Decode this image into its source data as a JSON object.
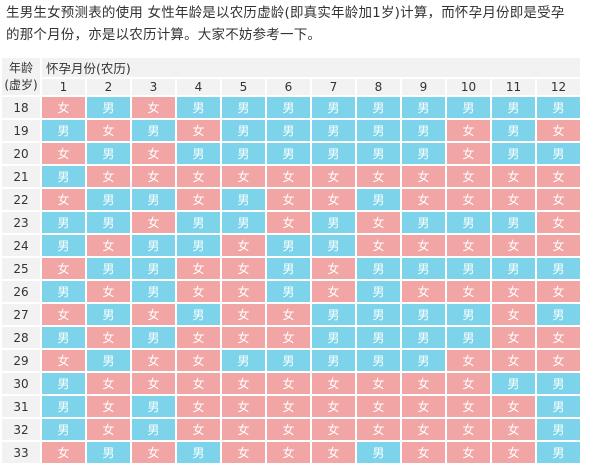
{
  "intro": {
    "line1": "生男生女预测表的使用 女性年龄是以农历虚龄(即真实年龄加1岁)计算，而怀孕月份即是受孕",
    "line2": "的那个月份，亦是以农历计算。大家不妨参考一下。"
  },
  "table": {
    "corner_line1": "年龄",
    "corner_line2": "(虚岁)",
    "month_title": "怀孕月份(农历)",
    "months": [
      "1",
      "2",
      "3",
      "4",
      "5",
      "6",
      "7",
      "8",
      "9",
      "10",
      "11",
      "12"
    ],
    "boy_label": "男",
    "girl_label": "女",
    "colors": {
      "boy": "#7dd4ea",
      "girl": "#f2a5a5",
      "header": "#f2f2f2"
    },
    "rows": [
      {
        "age": "18",
        "cells": [
          "女",
          "男",
          "女",
          "男",
          "男",
          "男",
          "男",
          "男",
          "男",
          "男",
          "男",
          "男"
        ]
      },
      {
        "age": "19",
        "cells": [
          "男",
          "女",
          "男",
          "女",
          "男",
          "男",
          "男",
          "男",
          "男",
          "女",
          "男",
          "女"
        ]
      },
      {
        "age": "20",
        "cells": [
          "女",
          "男",
          "女",
          "男",
          "男",
          "男",
          "男",
          "男",
          "男",
          "女",
          "男",
          "男"
        ]
      },
      {
        "age": "21",
        "cells": [
          "男",
          "女",
          "女",
          "女",
          "女",
          "女",
          "女",
          "女",
          "女",
          "女",
          "女",
          "女"
        ]
      },
      {
        "age": "22",
        "cells": [
          "女",
          "男",
          "男",
          "女",
          "男",
          "女",
          "女",
          "男",
          "女",
          "女",
          "女",
          "女"
        ]
      },
      {
        "age": "23",
        "cells": [
          "男",
          "男",
          "女",
          "男",
          "男",
          "女",
          "男",
          "女",
          "男",
          "男",
          "男",
          "女"
        ]
      },
      {
        "age": "24",
        "cells": [
          "男",
          "女",
          "男",
          "男",
          "女",
          "男",
          "男",
          "女",
          "女",
          "女",
          "女",
          "女"
        ]
      },
      {
        "age": "25",
        "cells": [
          "女",
          "男",
          "男",
          "女",
          "女",
          "男",
          "女",
          "男",
          "男",
          "男",
          "男",
          "男"
        ]
      },
      {
        "age": "26",
        "cells": [
          "男",
          "女",
          "男",
          "女",
          "女",
          "男",
          "女",
          "男",
          "女",
          "女",
          "女",
          "女"
        ]
      },
      {
        "age": "27",
        "cells": [
          "女",
          "男",
          "女",
          "男",
          "女",
          "女",
          "男",
          "男",
          "男",
          "男",
          "女",
          "男"
        ]
      },
      {
        "age": "28",
        "cells": [
          "男",
          "女",
          "男",
          "女",
          "女",
          "女",
          "男",
          "男",
          "男",
          "男",
          "女",
          "女"
        ]
      },
      {
        "age": "29",
        "cells": [
          "女",
          "男",
          "女",
          "女",
          "男",
          "男",
          "男",
          "男",
          "男",
          "女",
          "女",
          "女"
        ]
      },
      {
        "age": "30",
        "cells": [
          "男",
          "女",
          "女",
          "女",
          "女",
          "女",
          "女",
          "女",
          "女",
          "女",
          "男",
          "男"
        ]
      },
      {
        "age": "31",
        "cells": [
          "男",
          "女",
          "男",
          "女",
          "女",
          "女",
          "女",
          "女",
          "女",
          "女",
          "女",
          "男"
        ]
      },
      {
        "age": "32",
        "cells": [
          "男",
          "女",
          "男",
          "女",
          "女",
          "女",
          "女",
          "女",
          "女",
          "女",
          "女",
          "男"
        ]
      },
      {
        "age": "33",
        "cells": [
          "女",
          "男",
          "女",
          "男",
          "女",
          "女",
          "女",
          "男",
          "女",
          "女",
          "女",
          "男"
        ]
      }
    ]
  }
}
